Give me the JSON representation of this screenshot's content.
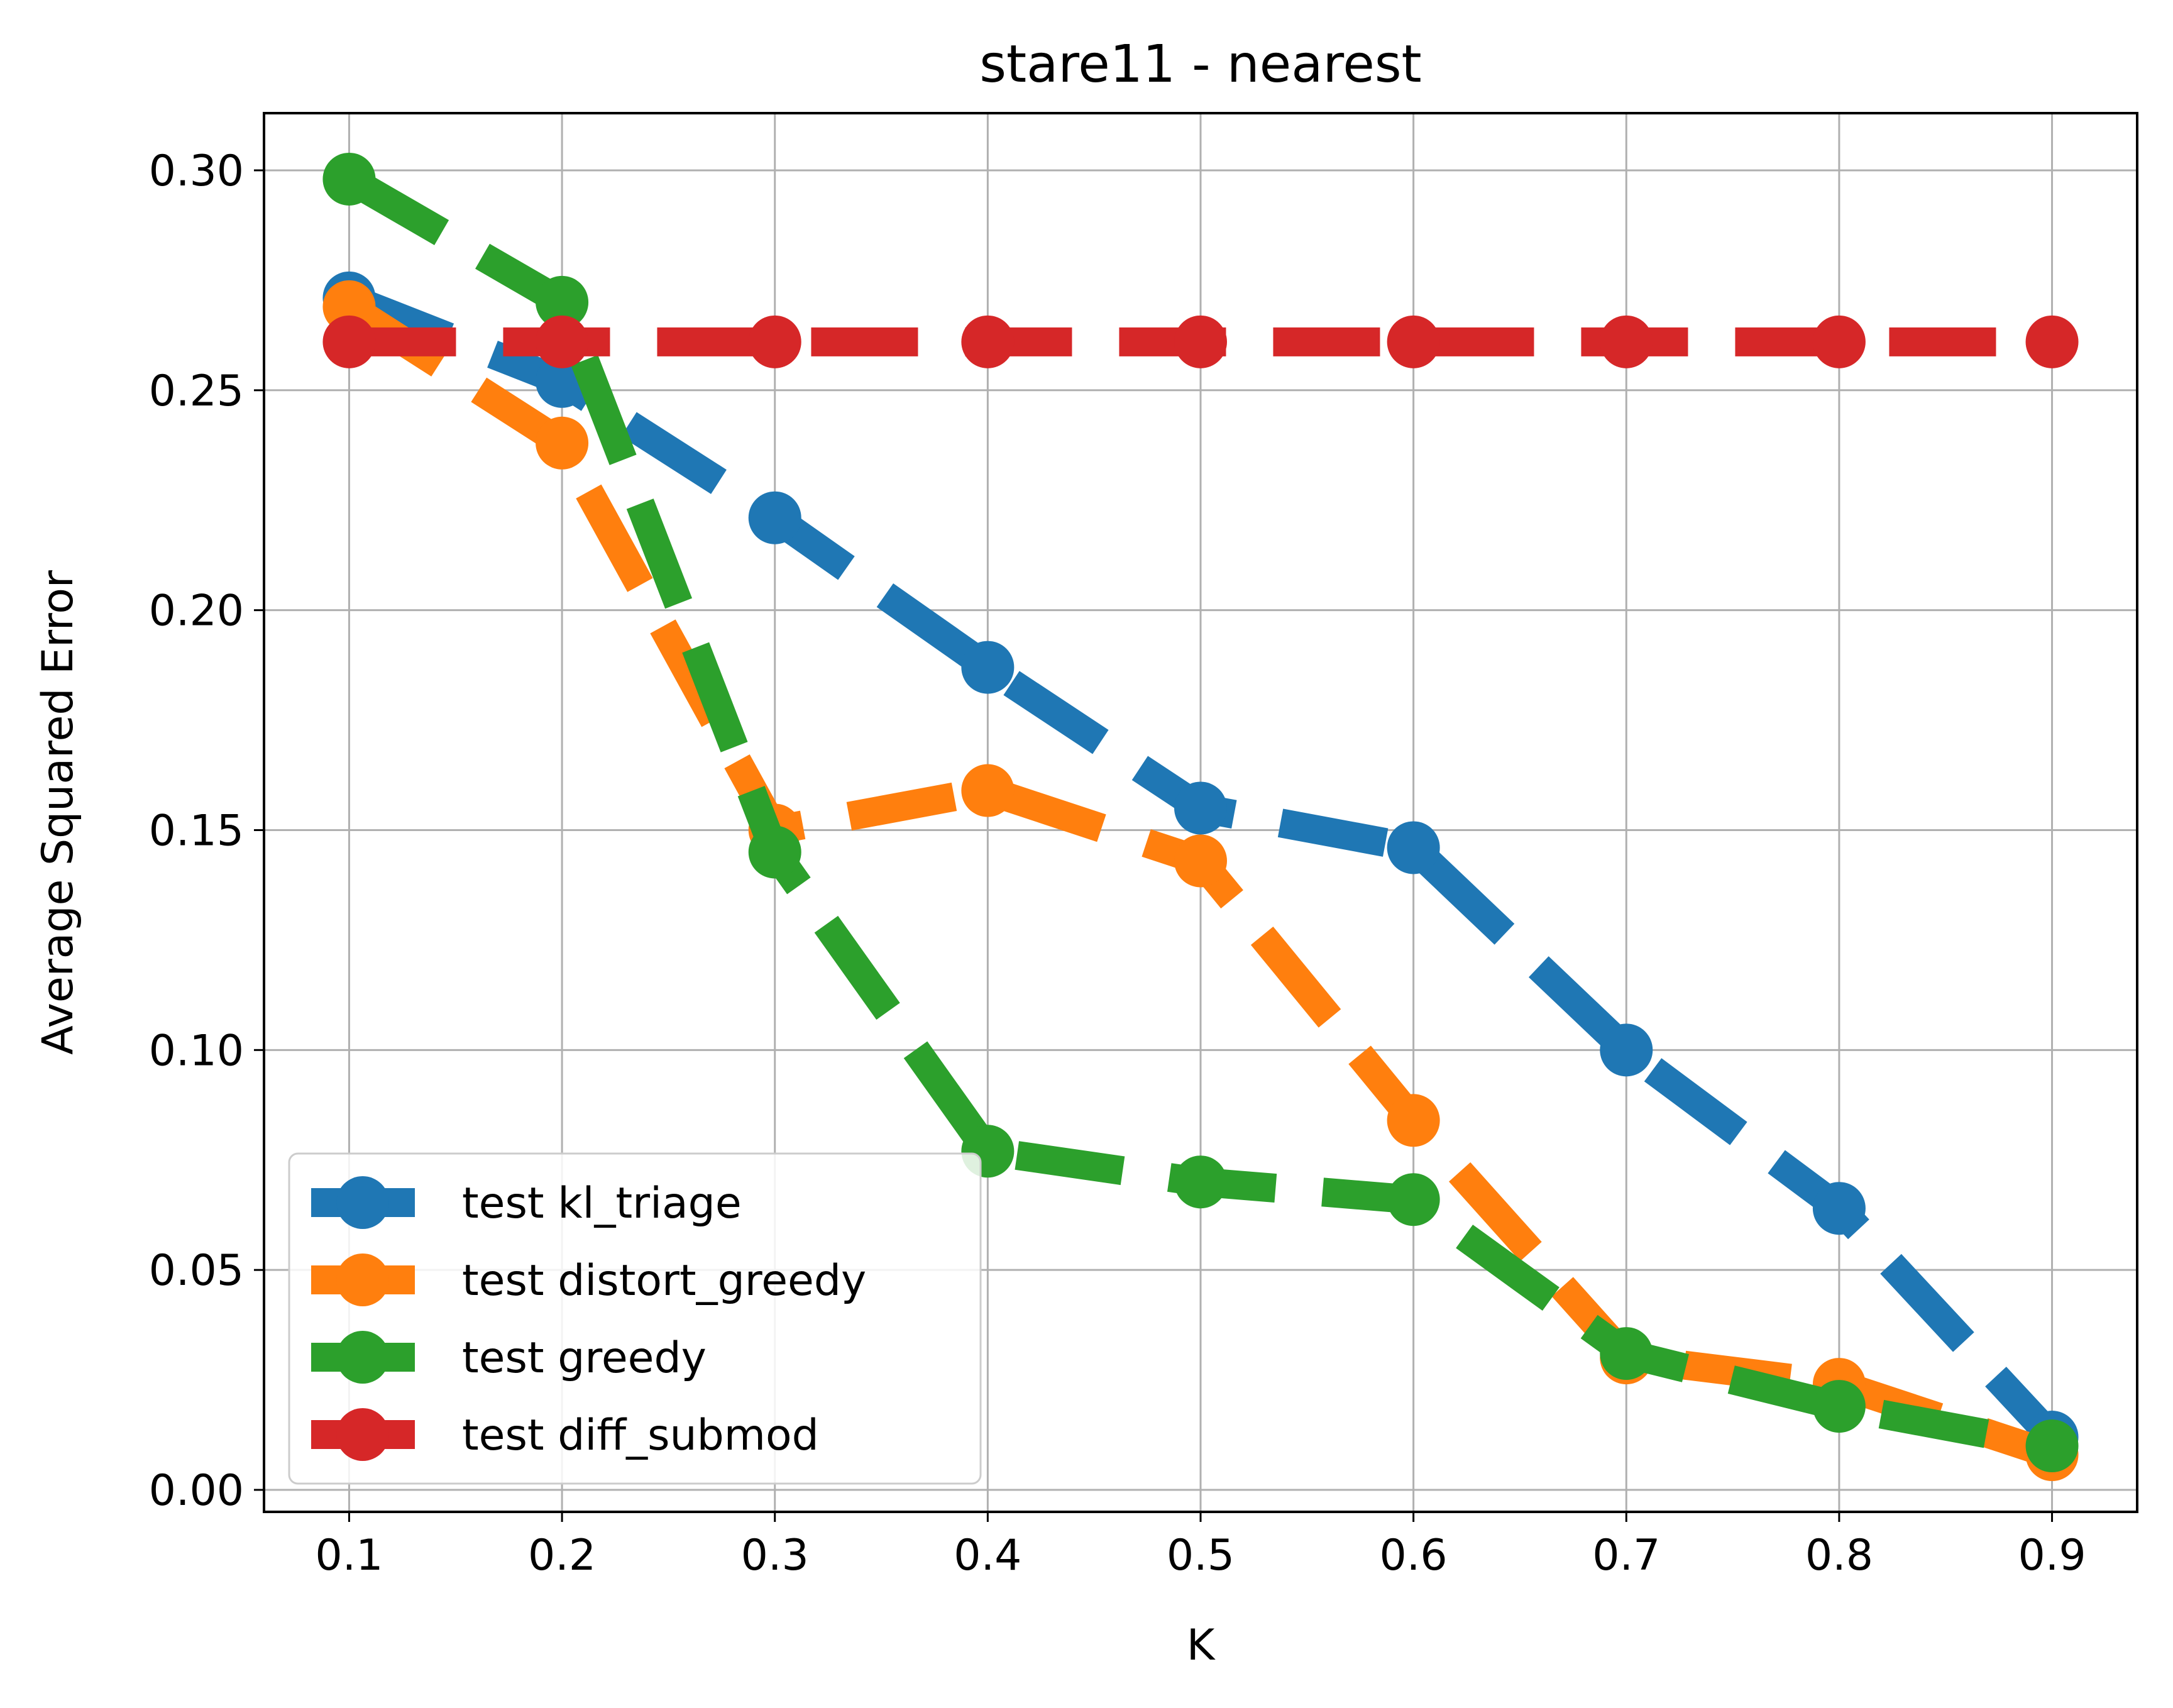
{
  "chart_data": {
    "type": "line",
    "title": "stare11 - nearest",
    "xlabel": "K",
    "ylabel": "Average Squared Error",
    "x": [
      0.1,
      0.2,
      0.3,
      0.4,
      0.5,
      0.6,
      0.7,
      0.8,
      0.9
    ],
    "x_tick_labels": [
      "0.1",
      "0.2",
      "0.3",
      "0.4",
      "0.5",
      "0.6",
      "0.7",
      "0.8",
      "0.9"
    ],
    "y_ticks": [
      0.0,
      0.05,
      0.1,
      0.15,
      0.2,
      0.25,
      0.3
    ],
    "y_tick_labels": [
      "0.00",
      "0.05",
      "0.10",
      "0.15",
      "0.20",
      "0.25",
      "0.30"
    ],
    "xlim": [
      0.06,
      0.94
    ],
    "ylim": [
      -0.005,
      0.313
    ],
    "grid": true,
    "legend_position": "lower-left",
    "series": [
      {
        "name": "test kl_triage",
        "color": "#1f77b4",
        "values": [
          0.271,
          0.252,
          0.221,
          0.187,
          0.155,
          0.146,
          0.1,
          0.064,
          0.012
        ]
      },
      {
        "name": "test distort_greedy",
        "color": "#ff7f0e",
        "values": [
          0.269,
          0.238,
          0.15,
          0.159,
          0.143,
          0.084,
          0.03,
          0.024,
          0.008
        ]
      },
      {
        "name": "test greedy",
        "color": "#2ca02c",
        "values": [
          0.298,
          0.27,
          0.145,
          0.077,
          0.07,
          0.066,
          0.031,
          0.019,
          0.01
        ]
      },
      {
        "name": "test diff_submod",
        "color": "#d62728",
        "values": [
          0.261,
          0.261,
          0.261,
          0.261,
          0.261,
          0.261,
          0.261,
          0.261,
          0.261
        ]
      }
    ]
  }
}
